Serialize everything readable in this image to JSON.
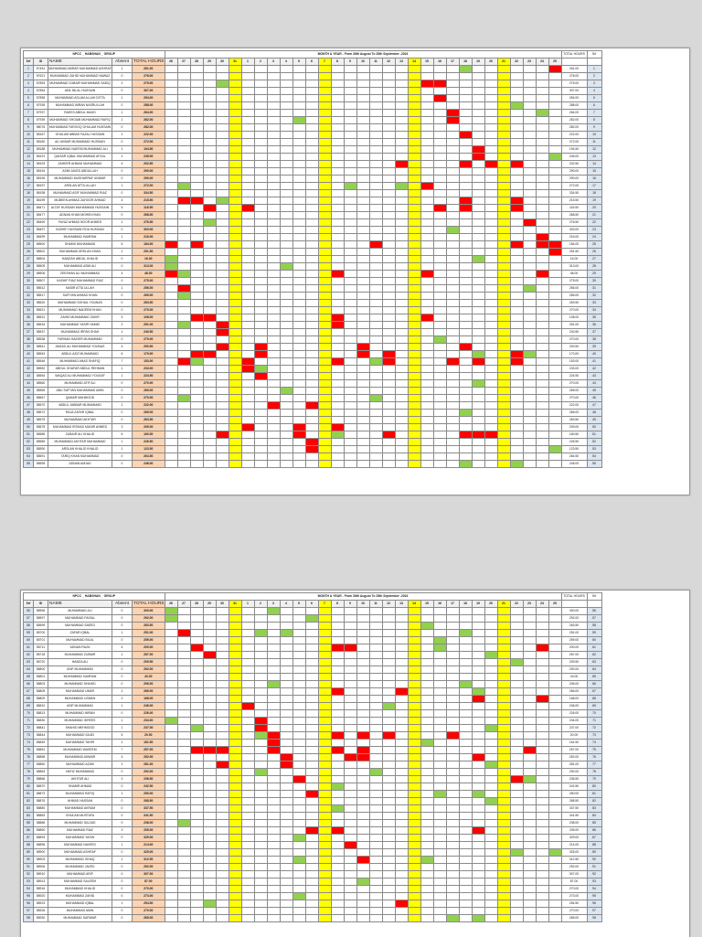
{
  "sheets": [
    {
      "title": "NPCC _ HABSHAN _ GROUP",
      "period": "MONTH & YEAR - From 26th August To 25th September -2024",
      "headers": {
        "srf": "Srf",
        "id": "ID",
        "name": "NAME",
        "absent": "Absent",
        "total": "TOTAL HOURS",
        "total_right": "TOTAL HOURS",
        "srf_right": "Srf"
      },
      "days": [
        "26",
        "27",
        "28",
        "29",
        "30",
        "31",
        "1",
        "2",
        "3",
        "4",
        "5",
        "6",
        "7",
        "8",
        "9",
        "10",
        "11",
        "12",
        "13",
        "14",
        "15",
        "16",
        "17",
        "18",
        "19",
        "20",
        "21",
        "22",
        "23",
        "24",
        "25"
      ],
      "weekend_days": [
        "31",
        "7",
        "14",
        "21"
      ],
      "rows": [
        {
          "srf": "1",
          "id": "57451",
          "name": "MUHAMMAD ABRAR MUHAMMAD ASHRAF",
          "absent": "1",
          "total": "261.00"
        },
        {
          "srf": "2",
          "id": "57621",
          "name": "MUHAMMAD ZAHID MUHAMMAD NAWAZ",
          "absent": "0",
          "total": "278.00"
        },
        {
          "srf": "3",
          "id": "57853",
          "name": "MUHAMMAD ZUBAIR MUHAMMAD SADIQ",
          "absent": "2",
          "total": "275.00"
        },
        {
          "srf": "4",
          "id": "57854",
          "name": "ADIL BILAL HUSSAIN",
          "absent": "0",
          "total": "307.00"
        },
        {
          "srf": "5",
          "id": "57855",
          "name": "MUHAMMAD ASLAM ALLAH DITTA",
          "absent": "1",
          "total": "254.00"
        },
        {
          "srf": "6",
          "id": "57935",
          "name": "MUHAMMAD IMRAN NASRULLAH",
          "absent": "0",
          "total": "288.00"
        },
        {
          "srf": "7",
          "id": "57937",
          "name": "RAEES ABDUL MAJID",
          "absent": "1",
          "total": "264.00"
        },
        {
          "srf": "8",
          "id": "57939",
          "name": "MUHAMMAD SHOAIB MUHAMMAD RAFIQ",
          "absent": "1",
          "total": "262.00"
        },
        {
          "srf": "9",
          "id": "58076",
          "name": "MUHAMMAD FAROOQ GHULAM HUSSAIN",
          "absent": "0",
          "total": "282.00"
        },
        {
          "srf": "10",
          "id": "58167",
          "name": "GHULAM ABBAS FAZAL HUSSAIN",
          "absent": "1",
          "total": "222.00"
        },
        {
          "srf": "11",
          "id": "58180",
          "name": "ALI AKBAR MUHAMMAD HUSSAIN",
          "absent": "0",
          "total": "272.00"
        },
        {
          "srf": "12",
          "id": "58188",
          "name": "MUHAMMAD NAEEM MUHAMMAD ALI",
          "absent": "1",
          "total": "194.50"
        },
        {
          "srf": "13",
          "id": "58191",
          "name": "QAISAR IQBAL MUHAMMAD AFZAL",
          "absent": "1",
          "total": "245.00"
        },
        {
          "srf": "14",
          "id": "58193",
          "name": "ZAHEER AHMAD MUHAMMAD",
          "absent": "4",
          "total": "202.50"
        },
        {
          "srf": "15",
          "id": "58194",
          "name": "ASIM JAVED ABDULLAH",
          "absent": "0",
          "total": "290.00"
        },
        {
          "srf": "16",
          "id": "58196",
          "name": "MUHAMMAD MUSHARRAF ANWAR",
          "absent": "0",
          "total": "290.00"
        },
        {
          "srf": "17",
          "id": "58197",
          "name": "ARSLAN ATTA ULLAH",
          "absent": "1",
          "total": "272.00"
        },
        {
          "srf": "18",
          "id": "58198",
          "name": "MUHAMMAD ASIF MUHAMMAD RIAZ",
          "absent": "0",
          "total": "334.50"
        },
        {
          "srf": "19",
          "id": "58199",
          "name": "MUBEEN AHMAD ZAHOOR AHMAD",
          "absent": "4",
          "total": "215.50"
        },
        {
          "srf": "20",
          "id": "58471",
          "name": "ALTAF HUSSAIN MUHAMMAD HUSSAIN",
          "absent": "5",
          "total": "116.50"
        },
        {
          "srf": "21",
          "id": "58477",
          "name": "ADNAN KHAN MOHIB KHAN",
          "absent": "0",
          "total": "268.50"
        },
        {
          "srf": "22",
          "id": "58490",
          "name": "FAYAZ AHMAD NOOR AHMED",
          "absent": "1",
          "total": "276.50"
        },
        {
          "srf": "23",
          "id": "58497",
          "name": "KASHIF HUSSAIN FIDA HUSSAIN",
          "absent": "0",
          "total": "303.00"
        },
        {
          "srf": "24",
          "id": "58499",
          "name": "MUHAMMAD KAMRAN",
          "absent": "1",
          "total": "216.00"
        },
        {
          "srf": "25",
          "id": "58500",
          "name": "SHAMS MUHAMMAD",
          "absent": "6",
          "total": "184.00"
        },
        {
          "srf": "26",
          "id": "58502",
          "name": "MUHAMMAD ARSLAN KHAN",
          "absent": "1",
          "total": "251.50"
        },
        {
          "srf": "27",
          "id": "58504",
          "name": "HAMZAH ABDUL KHALID",
          "absent": "0",
          "total": "16.00"
        },
        {
          "srf": "28",
          "id": "58505",
          "name": "MUHAMMAD ASIM ALI",
          "absent": "0",
          "total": "313.00"
        },
        {
          "srf": "29",
          "id": "58506",
          "name": "ZEESHAN ALI MUHAMMAD",
          "absent": "4",
          "total": "48.00"
        },
        {
          "srf": "30",
          "id": "58507",
          "name": "KASHIF RIAZ MUHAMMAD RIAZ",
          "absent": "0",
          "total": "275.00"
        },
        {
          "srf": "31",
          "id": "58512",
          "name": "NASIR ATTA ULLAH",
          "absent": "1",
          "total": "256.00"
        },
        {
          "srf": "32",
          "id": "58517",
          "name": "SUFIYAN AHMAD KHAN",
          "absent": "0",
          "total": "265.00"
        },
        {
          "srf": "33",
          "id": "58520",
          "name": "MUHAMMAD SOHAIL YOUNAS",
          "absent": "0",
          "total": "263.50"
        },
        {
          "srf": "34",
          "id": "58521",
          "name": "MUHAMMAD NADEEM KHAN",
          "absent": "0",
          "total": "270.00"
        },
        {
          "srf": "35",
          "id": "58531",
          "name": "ZAHID MUHAMMAD ZAKIR",
          "absent": "4",
          "total": "108.00"
        },
        {
          "srf": "36",
          "id": "58534",
          "name": "MUHAMMAD YASIR HAMID",
          "absent": "2",
          "total": "251.00"
        },
        {
          "srf": "37",
          "id": "58537",
          "name": "MUHAMMAD IRFAN SHAH",
          "absent": "1",
          "total": "240.50"
        },
        {
          "srf": "38",
          "id": "58538",
          "name": "FARHAN HAIDER MUHAMMAD",
          "absent": "0",
          "total": "270.00"
        },
        {
          "srf": "39",
          "id": "58541",
          "name": "AMJAD ALI MUHAMMAD YOUNAS",
          "absent": "4",
          "total": "200.50"
        },
        {
          "srf": "40",
          "id": "58543",
          "name": "ABDUL AZIZ MUHAMMAD",
          "absent": "6",
          "total": "170.00"
        },
        {
          "srf": "41",
          "id": "58546",
          "name": "MUHAMMAD ANAS SHAFIQ",
          "absent": "7",
          "total": "153.00"
        },
        {
          "srf": "42",
          "id": "58552",
          "name": "ABDUL GHAFAR ABDUL REHMAN",
          "absent": "1",
          "total": "233.00"
        },
        {
          "srf": "43",
          "id": "58554",
          "name": "WAQAS ALI MUHAMMAD YOUSAF",
          "absent": "1",
          "total": "224.50"
        },
        {
          "srf": "44",
          "id": "58560",
          "name": "MUHAMMAD ATIF ALI",
          "absent": "0",
          "total": "270.00"
        },
        {
          "srf": "45",
          "id": "58565",
          "name": "ABU SUFYAN MUHAMMAD AMIN",
          "absent": "0",
          "total": "265.00"
        },
        {
          "srf": "46",
          "id": "58567",
          "name": "QAMAR MAHMOOD",
          "absent": "0",
          "total": "270.00"
        },
        {
          "srf": "47",
          "id": "58570",
          "name": "ABDUL JABBAR MUHAMMAD",
          "absent": "2",
          "total": "222.00"
        },
        {
          "srf": "48",
          "id": "58572",
          "name": "RAJA ZAFAR IQBAL",
          "absent": "0",
          "total": "265.00"
        },
        {
          "srf": "49",
          "id": "58575",
          "name": "MUHAMMAD AKHTAR",
          "absent": "0",
          "total": "263.50"
        },
        {
          "srf": "50",
          "id": "58578",
          "name": "MUHAMMAD IRSHAD MUNIR AHMED",
          "absent": "3",
          "total": "209.00"
        },
        {
          "srf": "51",
          "id": "58585",
          "name": "ZUBAIR ALI KHALID",
          "absent": "6",
          "total": "160.50"
        },
        {
          "srf": "52",
          "id": "58589",
          "name": "MUHAMMAD AKHTAR MUHAMMAD",
          "absent": "1",
          "total": "226.50"
        },
        {
          "srf": "53",
          "id": "58590",
          "name": "ARSLAN KHALID KHALID",
          "absent": "1",
          "total": "123.50"
        },
        {
          "srf": "54",
          "id": "58591",
          "name": "TARIQ KHAN MUHAMMAD",
          "absent": "0",
          "total": "264.50"
        },
        {
          "srf": "55",
          "id": "58595",
          "name": "ADNAN AMJAD",
          "absent": "0",
          "total": "246.00"
        }
      ]
    },
    {
      "title": "NPCC _ HABSHAN _ GROUP",
      "period": "MONTH & YEAR - From 26th August To 25th September -2024",
      "headers": {
        "srf": "Srf",
        "id": "ID",
        "name": "NAME",
        "absent": "Absent",
        "total": "TOTAL HOURS",
        "total_right": "TOTAL HOURS",
        "srf_right": "Srf"
      },
      "days": [
        "26",
        "27",
        "28",
        "29",
        "30",
        "31",
        "1",
        "2",
        "3",
        "4",
        "5",
        "6",
        "7",
        "8",
        "9",
        "10",
        "11",
        "12",
        "13",
        "14",
        "15",
        "16",
        "17",
        "18",
        "19",
        "20",
        "21",
        "22",
        "23",
        "24",
        "25"
      ],
      "weekend_days": [
        "31",
        "7",
        "14",
        "21"
      ],
      "rows": [
        {
          "srf": "56",
          "id": "58596",
          "name": "MUHAMMAD ALI",
          "absent": "0",
          "total": "300.00"
        },
        {
          "srf": "57",
          "id": "58597",
          "name": "MUHAMMAD FAISAL",
          "absent": "0",
          "total": "292.00"
        },
        {
          "srf": "58",
          "id": "58599",
          "name": "MUHAMMAD SAEED",
          "absent": "0",
          "total": "263.50"
        },
        {
          "srf": "59",
          "id": "58700",
          "name": "ZAFAR IQBAL",
          "absent": "1",
          "total": "251.00"
        },
        {
          "srf": "60",
          "id": "58701",
          "name": "MUHAMMAD BILAL",
          "absent": "0",
          "total": "259.00"
        },
        {
          "srf": "61",
          "id": "58711",
          "name": "ADNAN RAZA",
          "absent": "4",
          "total": "200.00"
        },
        {
          "srf": "62",
          "id": "58718",
          "name": "MUHAMMAD ZUBAIR",
          "absent": "1",
          "total": "267.00"
        },
        {
          "srf": "63",
          "id": "58720",
          "name": "HAMZA ALI",
          "absent": "0",
          "total": "209.50"
        },
        {
          "srf": "64",
          "id": "58800",
          "name": "ASIF MUHAMMAD",
          "absent": "0",
          "total": "292.00"
        },
        {
          "srf": "65",
          "id": "58801",
          "name": "MUHAMMAD KAMRAN",
          "absent": "0",
          "total": "43.00"
        },
        {
          "srf": "66",
          "id": "58803",
          "name": "MUHAMMAD SHAHID",
          "absent": "0",
          "total": "206.00"
        },
        {
          "srf": "67",
          "id": "58805",
          "name": "MUHAMMAD UMAR",
          "absent": "2",
          "total": "266.00"
        },
        {
          "srf": "68",
          "id": "58809",
          "name": "MUHAMMAD USMAN",
          "absent": "2",
          "total": "168.00"
        },
        {
          "srf": "69",
          "id": "58810",
          "name": "ASIF MUHAMMAD",
          "absent": "1",
          "total": "246.00"
        },
        {
          "srf": "70",
          "id": "58813",
          "name": "MUHAMMAD IMRAN",
          "absent": "0",
          "total": "226.00"
        },
        {
          "srf": "71",
          "id": "58830",
          "name": "MUHAMMAD IDREES",
          "absent": "1",
          "total": "234.00"
        },
        {
          "srf": "72",
          "id": "58841",
          "name": "SHAHID MEHMOOD",
          "absent": "1",
          "total": "237.00"
        },
        {
          "srf": "73",
          "id": "58844",
          "name": "MUHAMMAD SAJID",
          "absent": "5",
          "total": "20.00"
        },
        {
          "srf": "74",
          "id": "58849",
          "name": "MUHAMMAD TAHIR",
          "absent": "1",
          "total": "161.50"
        },
        {
          "srf": "75",
          "id": "58851",
          "name": "MUHAMMAD WASEEM",
          "absent": "7",
          "total": "257.00"
        },
        {
          "srf": "76",
          "id": "58858",
          "name": "MUHAMMAD ANWAR",
          "absent": "4",
          "total": "252.00"
        },
        {
          "srf": "77",
          "id": "58860",
          "name": "MUHAMMAD AZAM",
          "absent": "2",
          "total": "281.00"
        },
        {
          "srf": "78",
          "id": "58863",
          "name": "HAFIZ MUHAMMAD",
          "absent": "0",
          "total": "292.00"
        },
        {
          "srf": "79",
          "id": "58866",
          "name": "AKHTAR ALI",
          "absent": "2",
          "total": "236.50"
        },
        {
          "srf": "80",
          "id": "58870",
          "name": "SHABIR AHMAD",
          "absent": "0",
          "total": "242.50"
        },
        {
          "srf": "81",
          "id": "58873",
          "name": "MUHAMMAD RAFIQ",
          "absent": "1",
          "total": "250.00"
        },
        {
          "srf": "82",
          "id": "58876",
          "name": "AHMAD HASSAN",
          "absent": "0",
          "total": "268.50"
        },
        {
          "srf": "83",
          "id": "58880",
          "name": "MUHAMMAD AKRAM",
          "absent": "0",
          "total": "337.50"
        },
        {
          "srf": "84",
          "id": "58883",
          "name": "GHULAM MUSTAFA",
          "absent": "0",
          "total": "341.50"
        },
        {
          "srf": "85",
          "id": "58886",
          "name": "MUHAMMAD SAJJAD",
          "absent": "0",
          "total": "238.00"
        },
        {
          "srf": "86",
          "id": "58890",
          "name": "MUHAMMAD RIAZ",
          "absent": "3",
          "total": "205.00"
        },
        {
          "srf": "87",
          "id": "58893",
          "name": "MUHAMMAD YASIN",
          "absent": "0",
          "total": "329.00"
        },
        {
          "srf": "88",
          "id": "58896",
          "name": "MUHAMMAD NAVEED",
          "absent": "1",
          "total": "214.00"
        },
        {
          "srf": "89",
          "id": "58900",
          "name": "MUHAMMAD ASHRAF",
          "absent": "0",
          "total": "325.00"
        },
        {
          "srf": "90",
          "id": "58903",
          "name": "MUHAMMAD ISHAQ",
          "absent": "1",
          "total": "312.50"
        },
        {
          "srf": "91",
          "id": "58906",
          "name": "MUHAMMAD JAVED",
          "absent": "0",
          "total": "292.00"
        },
        {
          "srf": "92",
          "id": "58910",
          "name": "MUHAMMAD ARIF",
          "absent": "0",
          "total": "307.00"
        },
        {
          "srf": "93",
          "id": "58913",
          "name": "MUHAMMAD SALEEM",
          "absent": "0",
          "total": "87.00"
        },
        {
          "srf": "94",
          "id": "58916",
          "name": "MUHAMMAD KHALID",
          "absent": "0",
          "total": "270.00"
        },
        {
          "srf": "95",
          "id": "58920",
          "name": "MUHAMMAD ZAHID",
          "absent": "0",
          "total": "273.00"
        },
        {
          "srf": "96",
          "id": "58923",
          "name": "MUHAMMAD IQBAL",
          "absent": "1",
          "total": "254.50"
        },
        {
          "srf": "97",
          "id": "58926",
          "name": "MUHAMMAD AMIN",
          "absent": "0",
          "total": "270.00"
        },
        {
          "srf": "98",
          "id": "58930",
          "name": "MUHAMMAD SARWAR",
          "absent": "0",
          "total": "265.00"
        }
      ]
    }
  ]
}
